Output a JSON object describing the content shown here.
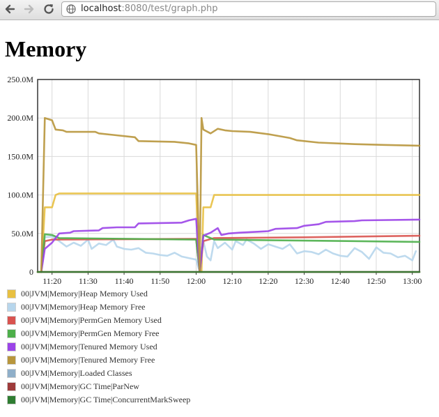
{
  "browser": {
    "back_icon": "back-arrow-icon",
    "forward_icon": "forward-arrow-icon",
    "reload_icon": "reload-icon",
    "url_host": "localhost",
    "url_port": ":8080",
    "url_path": "/test/graph.php"
  },
  "page": {
    "title": "Memory"
  },
  "colors": {
    "grid": "#d9d9d9",
    "axis": "#333333"
  },
  "chart_data": {
    "type": "line",
    "title": "",
    "xlabel": "",
    "ylabel": "",
    "ylim": [
      0,
      250
    ],
    "xlim": [
      "11:16",
      "13:02"
    ],
    "grid": true,
    "legend_position": "bottom-left",
    "y_ticks": [
      0,
      50,
      100,
      150,
      200,
      250
    ],
    "y_tick_labels": [
      "0",
      "50.0M",
      "100.0M",
      "150.0M",
      "200.0M",
      "250.0M"
    ],
    "x_ticks": [
      "11:20",
      "11:30",
      "11:40",
      "11:50",
      "12:00",
      "12:10",
      "12:20",
      "12:30",
      "12:40",
      "12:50",
      "13:00"
    ],
    "series": [
      {
        "name": "00|JVM|Memory|Heap Memory Used",
        "color": "#e8c041",
        "points": [
          [
            "11:16",
            0
          ],
          [
            "11:17",
            0
          ],
          [
            "11:18",
            84
          ],
          [
            "11:20",
            84
          ],
          [
            "11:21",
            100
          ],
          [
            "11:22",
            102
          ],
          [
            "12:00",
            102
          ],
          [
            "12:01",
            0
          ],
          [
            "12:01:30",
            0
          ],
          [
            "12:02",
            84
          ],
          [
            "12:04",
            84
          ],
          [
            "12:05",
            100
          ],
          [
            "13:02",
            100
          ]
        ]
      },
      {
        "name": "00|JVM|Memory|Heap Memory Free",
        "color": "#b7d6ec",
        "points": [
          [
            "11:17",
            0
          ],
          [
            "11:18",
            45
          ],
          [
            "11:20",
            46
          ],
          [
            "11:22",
            40
          ],
          [
            "11:24",
            33
          ],
          [
            "11:26",
            38
          ],
          [
            "11:28",
            34
          ],
          [
            "11:30",
            42
          ],
          [
            "11:31",
            30
          ],
          [
            "11:33",
            37
          ],
          [
            "11:35",
            35
          ],
          [
            "11:37",
            42
          ],
          [
            "11:38",
            33
          ],
          [
            "11:40",
            30
          ],
          [
            "11:42",
            29
          ],
          [
            "11:44",
            31
          ],
          [
            "11:46",
            25
          ],
          [
            "11:48",
            24
          ],
          [
            "11:50",
            22
          ],
          [
            "11:52",
            21
          ],
          [
            "11:54",
            25
          ],
          [
            "11:56",
            20
          ],
          [
            "11:58",
            18
          ],
          [
            "12:00",
            16
          ],
          [
            "12:01",
            0
          ],
          [
            "12:02",
            40
          ],
          [
            "12:03",
            20
          ],
          [
            "12:04",
            15
          ],
          [
            "12:05",
            40
          ],
          [
            "12:06",
            31
          ],
          [
            "12:08",
            38
          ],
          [
            "12:10",
            29
          ],
          [
            "12:11",
            40
          ],
          [
            "12:13",
            35
          ],
          [
            "12:14",
            42
          ],
          [
            "12:16",
            37
          ],
          [
            "12:18",
            30
          ],
          [
            "12:20",
            36
          ],
          [
            "12:22",
            33
          ],
          [
            "12:24",
            30
          ],
          [
            "12:26",
            36
          ],
          [
            "12:28",
            24
          ],
          [
            "12:30",
            27
          ],
          [
            "12:32",
            26
          ],
          [
            "12:34",
            23
          ],
          [
            "12:36",
            29
          ],
          [
            "12:38",
            24
          ],
          [
            "12:40",
            21
          ],
          [
            "12:42",
            20
          ],
          [
            "12:44",
            31
          ],
          [
            "12:46",
            26
          ],
          [
            "12:48",
            17
          ],
          [
            "12:50",
            32
          ],
          [
            "12:52",
            25
          ],
          [
            "12:54",
            24
          ],
          [
            "12:56",
            19
          ],
          [
            "12:58",
            21
          ],
          [
            "13:00",
            15
          ],
          [
            "13:01",
            27
          ]
        ]
      },
      {
        "name": "00|JVM|Memory|PermGen Memory Used",
        "color": "#d9534f",
        "points": [
          [
            "11:17",
            0
          ],
          [
            "11:18",
            40
          ],
          [
            "11:20",
            42
          ],
          [
            "12:00",
            43
          ],
          [
            "12:01",
            0
          ],
          [
            "12:02",
            40
          ],
          [
            "12:05",
            44
          ],
          [
            "12:30",
            45
          ],
          [
            "13:02",
            47
          ]
        ]
      },
      {
        "name": "00|JVM|Memory|PermGen Memory Free",
        "color": "#4daf4a",
        "points": [
          [
            "11:17",
            0
          ],
          [
            "11:18",
            49
          ],
          [
            "11:20",
            48
          ],
          [
            "11:22",
            44
          ],
          [
            "12:00",
            42
          ],
          [
            "12:01",
            0
          ],
          [
            "12:02",
            48
          ],
          [
            "12:05",
            42
          ],
          [
            "13:02",
            39
          ]
        ]
      },
      {
        "name": "00|JVM|Memory|Tenured Memory Used",
        "color": "#9b44e8",
        "points": [
          [
            "11:17",
            0
          ],
          [
            "11:18",
            30
          ],
          [
            "11:20",
            38
          ],
          [
            "11:22",
            50
          ],
          [
            "11:25",
            51
          ],
          [
            "11:26",
            53
          ],
          [
            "11:33",
            54
          ],
          [
            "11:34",
            57
          ],
          [
            "11:38",
            58
          ],
          [
            "11:43",
            58
          ],
          [
            "11:44",
            63
          ],
          [
            "11:56",
            64
          ],
          [
            "11:58",
            67
          ],
          [
            "12:00",
            69
          ],
          [
            "12:01",
            0
          ],
          [
            "12:02",
            47
          ],
          [
            "12:04",
            51
          ],
          [
            "12:06",
            57
          ],
          [
            "12:07",
            48
          ],
          [
            "12:09",
            50
          ],
          [
            "12:12",
            51
          ],
          [
            "12:20",
            53
          ],
          [
            "12:22",
            56
          ],
          [
            "12:28",
            57
          ],
          [
            "12:30",
            60
          ],
          [
            "12:34",
            62
          ],
          [
            "12:36",
            65
          ],
          [
            "12:44",
            66
          ],
          [
            "12:46",
            67
          ],
          [
            "13:02",
            68
          ]
        ]
      },
      {
        "name": "00|JVM|Memory|Tenured Memory Free",
        "color": "#b8963c",
        "points": [
          [
            "11:17",
            0
          ],
          [
            "11:18",
            200
          ],
          [
            "11:20",
            197
          ],
          [
            "11:21",
            185
          ],
          [
            "11:23",
            184
          ],
          [
            "11:24",
            182
          ],
          [
            "11:32",
            182
          ],
          [
            "11:33",
            180
          ],
          [
            "11:37",
            178
          ],
          [
            "11:43",
            175
          ],
          [
            "11:44",
            170
          ],
          [
            "11:54",
            169
          ],
          [
            "11:58",
            167
          ],
          [
            "12:00",
            165
          ],
          [
            "12:01",
            0
          ],
          [
            "12:01:30",
            200
          ],
          [
            "12:02",
            185
          ],
          [
            "12:04",
            180
          ],
          [
            "12:06",
            186
          ],
          [
            "12:08",
            184
          ],
          [
            "12:10",
            183
          ],
          [
            "12:15",
            182
          ],
          [
            "12:20",
            179
          ],
          [
            "12:26",
            174
          ],
          [
            "12:28",
            171
          ],
          [
            "12:34",
            168
          ],
          [
            "12:44",
            166
          ],
          [
            "12:52",
            165
          ],
          [
            "13:02",
            164
          ]
        ]
      },
      {
        "name": "00|JVM|Memory|Loaded Classes",
        "color": "#8fafc9",
        "points": []
      },
      {
        "name": "00|JVM|Memory|GC Time|ParNew",
        "color": "#9e3b3b",
        "points": [
          [
            "11:16",
            0
          ],
          [
            "13:02",
            0
          ]
        ]
      },
      {
        "name": "00|JVM|Memory|GC Time|ConcurrentMarkSweep",
        "color": "#2f7d32",
        "points": [
          [
            "11:16",
            0
          ],
          [
            "13:02",
            0
          ]
        ]
      }
    ]
  }
}
